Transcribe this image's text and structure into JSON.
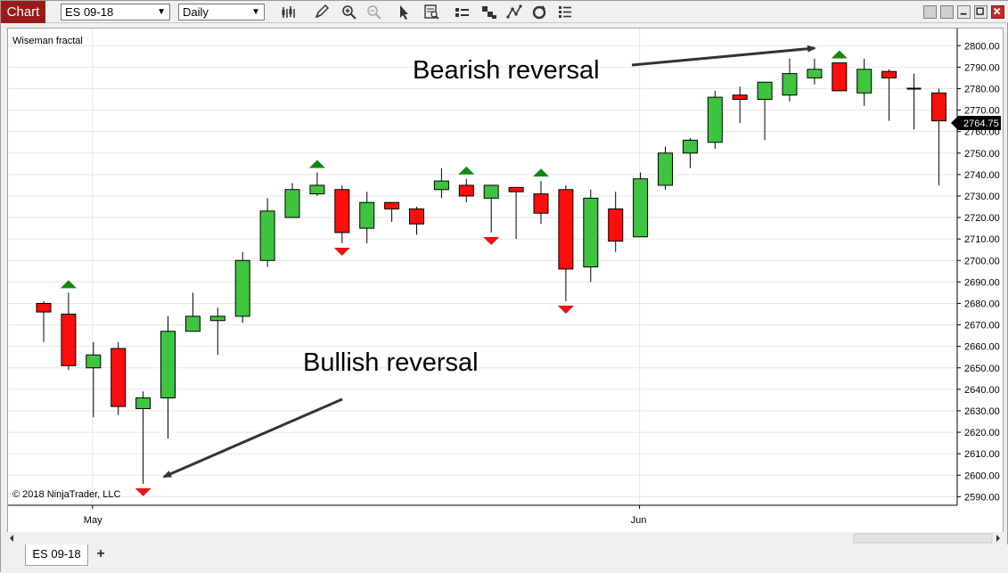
{
  "toolbar": {
    "chart_label": "Chart",
    "instrument": "ES 09-18",
    "period": "Daily"
  },
  "bottom": {
    "tab_label": "ES 09-18",
    "add_label": "+"
  },
  "chart_data": {
    "type": "candlestick",
    "indicator_label": "Wiseman fractal",
    "copyright": "© 2018 NinjaTrader, LLC",
    "current_price_label": "2764.75",
    "annotations": [
      "Bearish reversal",
      "Bullish reversal"
    ],
    "xtick_labels": [
      "May",
      "Jun"
    ],
    "ylim": [
      2586,
      2808
    ],
    "yticks": [
      2590,
      2600,
      2610,
      2620,
      2630,
      2640,
      2650,
      2660,
      2670,
      2680,
      2690,
      2700,
      2710,
      2720,
      2730,
      2740,
      2750,
      2760,
      2770,
      2780,
      2790,
      2800
    ],
    "up_color": "#3ec43e",
    "down_color": "#ff0d0d",
    "candles": [
      {
        "o": 2680,
        "h": 2681,
        "l": 2662,
        "c": 2676
      },
      {
        "o": 2675,
        "h": 2685,
        "l": 2649,
        "c": 2651
      },
      {
        "o": 2650,
        "h": 2662,
        "l": 2627,
        "c": 2656
      },
      {
        "o": 2659,
        "h": 2662,
        "l": 2628,
        "c": 2632
      },
      {
        "o": 2631,
        "h": 2639,
        "l": 2596,
        "c": 2636
      },
      {
        "o": 2636,
        "h": 2674,
        "l": 2617,
        "c": 2667
      },
      {
        "o": 2667,
        "h": 2685,
        "l": 2667,
        "c": 2674
      },
      {
        "o": 2672,
        "h": 2678,
        "l": 2656,
        "c": 2674
      },
      {
        "o": 2674,
        "h": 2704,
        "l": 2671,
        "c": 2700
      },
      {
        "o": 2700,
        "h": 2729,
        "l": 2697,
        "c": 2723
      },
      {
        "o": 2720,
        "h": 2736,
        "l": 2720,
        "c": 2733
      },
      {
        "o": 2731,
        "h": 2741,
        "l": 2730,
        "c": 2735
      },
      {
        "o": 2733,
        "h": 2735,
        "l": 2708,
        "c": 2713
      },
      {
        "o": 2715,
        "h": 2732,
        "l": 2708,
        "c": 2727
      },
      {
        "o": 2727,
        "h": 2727,
        "l": 2718,
        "c": 2724
      },
      {
        "o": 2724,
        "h": 2725,
        "l": 2712,
        "c": 2717
      },
      {
        "o": 2733,
        "h": 2743,
        "l": 2729,
        "c": 2737
      },
      {
        "o": 2735,
        "h": 2738,
        "l": 2727,
        "c": 2730
      },
      {
        "o": 2729,
        "h": 2735,
        "l": 2713,
        "c": 2735
      },
      {
        "o": 2734,
        "h": 2734,
        "l": 2710,
        "c": 2732
      },
      {
        "o": 2731,
        "h": 2737,
        "l": 2717,
        "c": 2722
      },
      {
        "o": 2733,
        "h": 2735,
        "l": 2681,
        "c": 2696
      },
      {
        "o": 2697,
        "h": 2733,
        "l": 2690,
        "c": 2729
      },
      {
        "o": 2724,
        "h": 2732,
        "l": 2704,
        "c": 2709
      },
      {
        "o": 2711,
        "h": 2741,
        "l": 2711,
        "c": 2738
      },
      {
        "o": 2735,
        "h": 2753,
        "l": 2733,
        "c": 2750
      },
      {
        "o": 2750,
        "h": 2757,
        "l": 2743,
        "c": 2756
      },
      {
        "o": 2755,
        "h": 2779,
        "l": 2752,
        "c": 2776
      },
      {
        "o": 2777,
        "h": 2781,
        "l": 2764,
        "c": 2775
      },
      {
        "o": 2775,
        "h": 2783,
        "l": 2756,
        "c": 2783
      },
      {
        "o": 2777,
        "h": 2794,
        "l": 2774,
        "c": 2787
      },
      {
        "o": 2785,
        "h": 2794,
        "l": 2782,
        "c": 2789
      },
      {
        "o": 2792,
        "h": 2792,
        "l": 2779,
        "c": 2779
      },
      {
        "o": 2778,
        "h": 2794,
        "l": 2772,
        "c": 2789
      },
      {
        "o": 2788,
        "h": 2789,
        "l": 2765,
        "c": 2785
      },
      {
        "o": 2780,
        "h": 2787,
        "l": 2761,
        "c": 2780
      },
      {
        "o": 2778,
        "h": 2780,
        "l": 2735,
        "c": 2765
      }
    ],
    "fractal_up_indices": [
      1,
      11,
      17,
      20,
      32
    ],
    "fractal_down_indices": [
      4,
      12,
      18,
      21
    ]
  }
}
